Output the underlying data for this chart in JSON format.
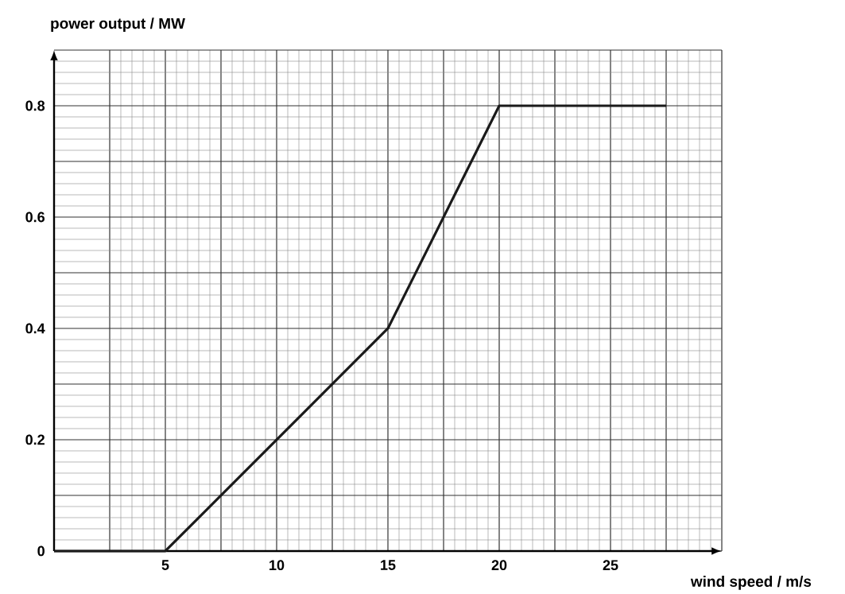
{
  "chart_data": {
    "type": "line",
    "xlabel": "wind speed / m/s",
    "ylabel": "power output / MW",
    "x": [
      0,
      5,
      15,
      20,
      27.5
    ],
    "series": [
      {
        "color": "#1a1a1a",
        "values": [
          0,
          0,
          0.4,
          0.8,
          0.8
        ]
      }
    ],
    "xlim": [
      0,
      30
    ],
    "ylim": [
      0,
      0.9
    ],
    "xticks": [
      {
        "value": 2.5,
        "label": null
      },
      5,
      {
        "value": 7.5,
        "label": null
      },
      10,
      {
        "value": 12.5,
        "label": null
      },
      15,
      {
        "value": 17.5,
        "label": null
      },
      20,
      {
        "value": 22.5,
        "label": null
      },
      25,
      {
        "value": 27.5,
        "label": null
      },
      {
        "value": 30,
        "label": null
      }
    ],
    "yticks": [
      0,
      {
        "value": 0.1,
        "label": null
      },
      0.2,
      {
        "value": 0.3,
        "label": null
      },
      0.4,
      {
        "value": 0.5,
        "label": null
      },
      0.6,
      {
        "value": 0.7,
        "label": null
      },
      0.8,
      {
        "value": 0.9,
        "label": null
      }
    ],
    "grid": true,
    "marker": "none",
    "line_style": "solid"
  }
}
